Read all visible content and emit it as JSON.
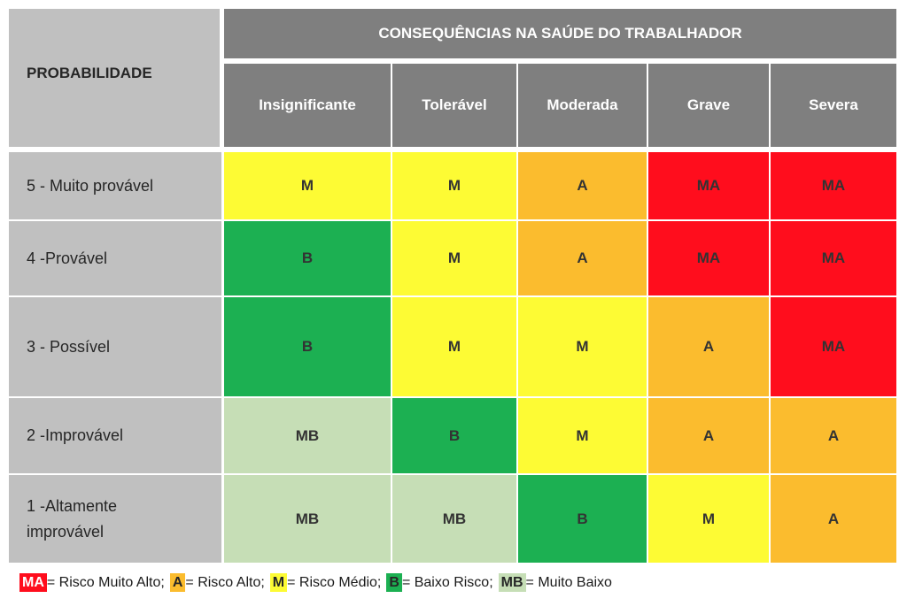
{
  "header": {
    "probabilidade": "PROBABILIDADE",
    "consequencias": "CONSEQUÊNCIAS NA SAÚDE DO TRABALHADOR",
    "columns": [
      "Insignificante",
      "Tolerável",
      "Moderada",
      "Grave",
      "Severa"
    ]
  },
  "rows": [
    {
      "label": "5 - Muito provável",
      "cells": [
        "M",
        "M",
        "A",
        "MA",
        "MA"
      ]
    },
    {
      "label": "4 -Provável",
      "cells": [
        "B",
        "M",
        "A",
        "MA",
        "MA"
      ]
    },
    {
      "label": "3 - Possível",
      "cells": [
        "B",
        "M",
        "M",
        "A",
        "MA"
      ]
    },
    {
      "label": "2 -Improvável",
      "cells": [
        "MB",
        "B",
        "M",
        "A",
        "A"
      ]
    },
    {
      "label": "1 -Altamente improvável",
      "cells": [
        "MB",
        "MB",
        "B",
        "M",
        "A"
      ]
    }
  ],
  "legend": [
    {
      "code": "MA",
      "text": "= Risco Muito Alto;"
    },
    {
      "code": "A",
      "text": "= Risco Alto;"
    },
    {
      "code": "M",
      "text": "= Risco Médio;"
    },
    {
      "code": "B",
      "text": "= Baixo Risco;"
    },
    {
      "code": "MB",
      "text": "= Muito Baixo"
    }
  ],
  "colors": {
    "MA": "#ff0d1d",
    "A": "#fbbc2e",
    "M": "#fdfb34",
    "B": "#1cb052",
    "MB": "#c6deb6",
    "header": "#7f7f7f",
    "row_label": "#c0c0c0"
  }
}
